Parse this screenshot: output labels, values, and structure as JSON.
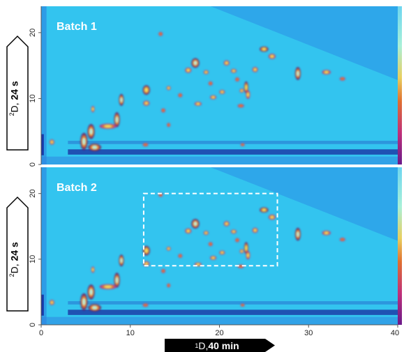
{
  "chart_data": {
    "type": "heatmap",
    "panels": [
      {
        "label": "Batch 1",
        "ylim": [
          0,
          24
        ],
        "y_ticks": [
          0,
          10,
          20
        ],
        "highlight_box": null
      },
      {
        "label": "Batch 2",
        "ylim": [
          0,
          24
        ],
        "y_ticks": [
          0,
          10,
          20
        ],
        "highlight_box": {
          "x": [
            11.5,
            26.5
          ],
          "y": [
            9,
            20
          ]
        }
      }
    ],
    "xlim": [
      0,
      40
    ],
    "x_ticks": [
      0,
      10,
      20,
      30,
      40
    ],
    "x_axis_label": {
      "sup": "1",
      "main": "D, ",
      "bold": "40 min"
    },
    "y_axis_label": {
      "sup": "2",
      "main": "D, ",
      "bold": "24 s"
    },
    "colormap": [
      "#0a1a7a",
      "#1e6fe0",
      "#33c4ef",
      "#a8f0e8",
      "#f0e060",
      "#e07030",
      "#c0307a",
      "#7a1050"
    ],
    "peaks": [
      {
        "x": 4.8,
        "y": 3.5,
        "i": 1.0,
        "w": 0.5,
        "h": 1.6
      },
      {
        "x": 5.6,
        "y": 5.0,
        "i": 0.95,
        "w": 0.5,
        "h": 1.4
      },
      {
        "x": 6.0,
        "y": 2.6,
        "i": 0.9,
        "w": 0.9,
        "h": 0.7
      },
      {
        "x": 8.5,
        "y": 6.8,
        "i": 0.9,
        "w": 0.4,
        "h": 1.4
      },
      {
        "x": 9.0,
        "y": 9.8,
        "i": 0.85,
        "w": 0.35,
        "h": 1.1
      },
      {
        "x": 7.5,
        "y": 5.8,
        "i": 0.7,
        "w": 1.2,
        "h": 0.5
      },
      {
        "x": 1.2,
        "y": 3.4,
        "i": 0.6,
        "w": 0.35,
        "h": 0.5
      },
      {
        "x": 5.8,
        "y": 8.4,
        "i": 0.55,
        "w": 0.25,
        "h": 0.6
      },
      {
        "x": 11.8,
        "y": 11.3,
        "i": 0.75,
        "w": 0.5,
        "h": 0.9
      },
      {
        "x": 11.8,
        "y": 9.3,
        "i": 0.6,
        "w": 0.45,
        "h": 0.5
      },
      {
        "x": 14.3,
        "y": 11.6,
        "i": 0.55,
        "w": 0.3,
        "h": 0.4
      },
      {
        "x": 13.7,
        "y": 8.2,
        "i": 0.45,
        "w": 0.3,
        "h": 0.4
      },
      {
        "x": 15.6,
        "y": 10.5,
        "i": 0.5,
        "w": 0.3,
        "h": 0.4
      },
      {
        "x": 16.5,
        "y": 14.3,
        "i": 0.6,
        "w": 0.45,
        "h": 0.5
      },
      {
        "x": 17.3,
        "y": 15.4,
        "i": 1.0,
        "w": 0.55,
        "h": 0.9
      },
      {
        "x": 17.6,
        "y": 9.2,
        "i": 0.55,
        "w": 0.5,
        "h": 0.4
      },
      {
        "x": 18.5,
        "y": 14.0,
        "i": 0.6,
        "w": 0.35,
        "h": 0.4
      },
      {
        "x": 19.0,
        "y": 12.3,
        "i": 0.5,
        "w": 0.3,
        "h": 0.4
      },
      {
        "x": 19.3,
        "y": 10.2,
        "i": 0.55,
        "w": 0.45,
        "h": 0.4
      },
      {
        "x": 20.3,
        "y": 11.0,
        "i": 0.55,
        "w": 0.4,
        "h": 0.4
      },
      {
        "x": 20.8,
        "y": 15.4,
        "i": 0.55,
        "w": 0.4,
        "h": 0.5
      },
      {
        "x": 21.6,
        "y": 14.2,
        "i": 0.6,
        "w": 0.4,
        "h": 0.4
      },
      {
        "x": 22.0,
        "y": 12.9,
        "i": 0.5,
        "w": 0.3,
        "h": 0.4
      },
      {
        "x": 22.5,
        "y": 11.2,
        "i": 0.55,
        "w": 0.3,
        "h": 0.4
      },
      {
        "x": 22.4,
        "y": 8.9,
        "i": 0.5,
        "w": 0.45,
        "h": 0.35
      },
      {
        "x": 23.0,
        "y": 11.7,
        "i": 0.75,
        "w": 0.3,
        "h": 1.1
      },
      {
        "x": 23.2,
        "y": 10.6,
        "i": 0.65,
        "w": 0.3,
        "h": 0.8
      },
      {
        "x": 24.0,
        "y": 14.4,
        "i": 0.6,
        "w": 0.4,
        "h": 0.5
      },
      {
        "x": 25.0,
        "y": 17.5,
        "i": 0.75,
        "w": 0.6,
        "h": 0.5
      },
      {
        "x": 25.9,
        "y": 16.4,
        "i": 0.7,
        "w": 0.5,
        "h": 0.5
      },
      {
        "x": 28.8,
        "y": 13.8,
        "i": 0.9,
        "w": 0.4,
        "h": 1.2
      },
      {
        "x": 32.0,
        "y": 14.0,
        "i": 0.6,
        "w": 0.6,
        "h": 0.45
      },
      {
        "x": 33.8,
        "y": 13.0,
        "i": 0.45,
        "w": 0.4,
        "h": 0.35
      },
      {
        "x": 13.4,
        "y": 19.8,
        "i": 0.5,
        "w": 0.3,
        "h": 0.4
      },
      {
        "x": 14.3,
        "y": 6.0,
        "i": 0.4,
        "w": 0.25,
        "h": 0.4
      },
      {
        "x": 11.7,
        "y": 3.0,
        "i": 0.4,
        "w": 0.4,
        "h": 0.35
      },
      {
        "x": 22.6,
        "y": 3.0,
        "i": 0.35,
        "w": 0.3,
        "h": 0.3
      }
    ]
  }
}
